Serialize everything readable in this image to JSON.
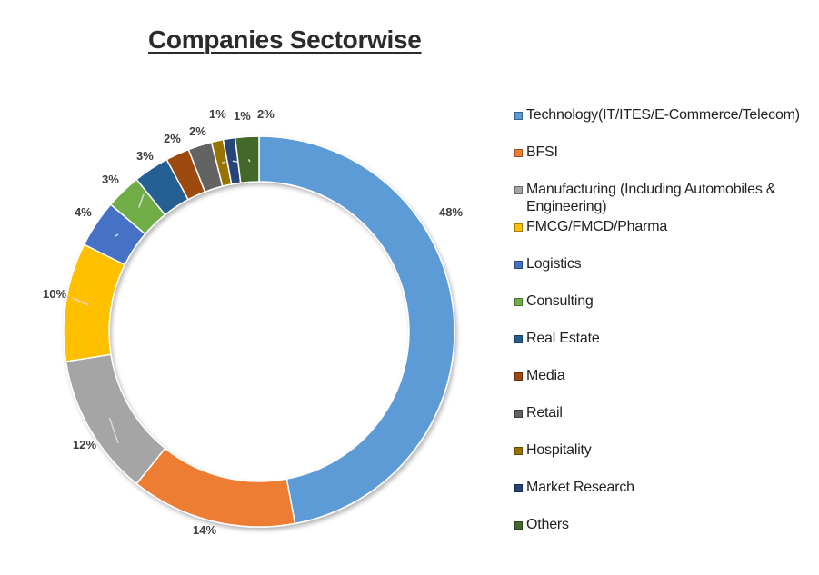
{
  "chart_data": {
    "type": "pie",
    "variant": "donut",
    "title": "Companies Sectorwise",
    "series": [
      {
        "name": "Technology(IT/ITES/E-Commerce/Telecom)",
        "value": 48,
        "label": "48%",
        "color": "#5b9bd5"
      },
      {
        "name": "BFSI",
        "value": 14,
        "label": "14%",
        "color": "#ed7d31"
      },
      {
        "name": "Manufacturing (Including Automobiles & Engineering)",
        "value": 12,
        "label": "12%",
        "color": "#a5a5a5"
      },
      {
        "name": "FMCG/FMCD/Pharma",
        "value": 10,
        "label": "10%",
        "color": "#ffc000"
      },
      {
        "name": "Logistics",
        "value": 4,
        "label": "4%",
        "color": "#4472c4"
      },
      {
        "name": "Consulting",
        "value": 3,
        "label": "3%",
        "color": "#70ad47"
      },
      {
        "name": "Real Estate",
        "value": 3,
        "label": "3%",
        "color": "#255e91"
      },
      {
        "name": "Media",
        "value": 2,
        "label": "2%",
        "color": "#9e480e"
      },
      {
        "name": "Retail",
        "value": 2,
        "label": "2%",
        "color": "#636363"
      },
      {
        "name": "Hospitality",
        "value": 1,
        "label": "1%",
        "color": "#997300"
      },
      {
        "name": "Market Research",
        "value": 1,
        "label": "1%",
        "color": "#264478"
      },
      {
        "name": "Others",
        "value": 2,
        "label": "2%",
        "color": "#43682b"
      }
    ],
    "legend_position": "right"
  }
}
